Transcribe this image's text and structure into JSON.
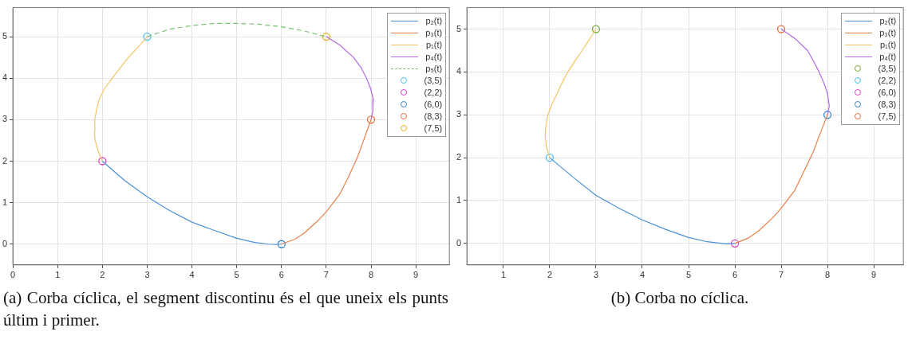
{
  "chart_data": [
    {
      "type": "line",
      "xlim": [
        0,
        9.75
      ],
      "ylim": [
        -0.5,
        5.7
      ],
      "xticks": [
        0,
        1,
        2,
        3,
        4,
        5,
        6,
        7,
        8,
        9
      ],
      "yticks": [
        0,
        1,
        2,
        3,
        4,
        5
      ],
      "grid": true,
      "legend": "top right",
      "annotations": [
        "(a) Corba cíclica, el segment discontinu és el que uneix els punts últim i primer."
      ],
      "series": [
        {
          "name": "p₂(t)",
          "color": "#4a90d9",
          "x": [
            2,
            2.5,
            3,
            3.5,
            4,
            4.5,
            5,
            5.4,
            5.7,
            5.9,
            6
          ],
          "values": [
            2,
            1.53,
            1.14,
            0.81,
            0.53,
            0.33,
            0.14,
            0.04,
            0,
            -0.01,
            0
          ]
        },
        {
          "name": "p₃(t)",
          "color": "#e8804a",
          "x": [
            6,
            6.3,
            6.5,
            6.8,
            7,
            7.3,
            7.5,
            7.7,
            7.8,
            7.9,
            8
          ],
          "values": [
            0,
            0.12,
            0.26,
            0.55,
            0.78,
            1.2,
            1.63,
            2.1,
            2.4,
            2.7,
            3
          ]
        },
        {
          "name": "p₁(t)",
          "color": "#f2c464",
          "x": [
            2,
            1.9,
            1.84,
            1.82,
            1.83,
            1.87,
            1.93,
            2.05,
            2.22,
            2.4,
            2.58,
            2.8,
            3
          ],
          "values": [
            2,
            2.25,
            2.5,
            2.7,
            3,
            3.25,
            3.5,
            3.75,
            4,
            4.25,
            4.5,
            4.75,
            5
          ]
        },
        {
          "name": "p₄(t)",
          "color": "#b36ae2",
          "x": [
            7,
            7.3,
            7.61,
            7.78,
            7.9,
            7.99,
            8.05,
            8.04,
            8
          ],
          "values": [
            5,
            4.8,
            4.5,
            4.25,
            4,
            3.75,
            3.5,
            3.2,
            3
          ]
        },
        {
          "name": "p₅(t)",
          "color": "#77c46e",
          "line_style": "dashed",
          "x": [
            3,
            3.5,
            4,
            4.5,
            5,
            5.5,
            6,
            6.5,
            7
          ],
          "values": [
            5,
            5.18,
            5.27,
            5.32,
            5.32,
            5.3,
            5.24,
            5.14,
            5
          ]
        },
        {
          "name": "(3,5)",
          "type": "scatter",
          "marker": "circle",
          "color": "#4dbeee",
          "x": [
            3
          ],
          "values": [
            5
          ]
        },
        {
          "name": "(2,2)",
          "type": "scatter",
          "marker": "circle",
          "color": "#e040c0",
          "x": [
            2
          ],
          "values": [
            2
          ]
        },
        {
          "name": "(6,0)",
          "type": "scatter",
          "marker": "circle",
          "color": "#3a86c8",
          "x": [
            6
          ],
          "values": [
            0
          ]
        },
        {
          "name": "(8,3)",
          "type": "scatter",
          "marker": "circle",
          "color": "#e07040",
          "x": [
            8
          ],
          "values": [
            3
          ]
        },
        {
          "name": "(7,5)",
          "type": "scatter",
          "marker": "circle",
          "color": "#edb120",
          "x": [
            7
          ],
          "values": [
            5
          ]
        }
      ]
    },
    {
      "type": "line",
      "xlim": [
        0.21,
        9.64
      ],
      "ylim": [
        -0.5,
        5.5
      ],
      "xticks": [
        1,
        2,
        3,
        4,
        5,
        6,
        7,
        8,
        9
      ],
      "yticks": [
        0,
        1,
        2,
        3,
        4,
        5
      ],
      "grid": true,
      "legend": "top right",
      "annotations": [
        "(b) Corba no cíclica."
      ],
      "series": [
        {
          "name": "p₂(t)",
          "color": "#4a90d9",
          "x": [
            2,
            2.5,
            3,
            3.5,
            4,
            4.5,
            5,
            5.4,
            5.8,
            6
          ],
          "values": [
            2,
            1.55,
            1.12,
            0.82,
            0.55,
            0.33,
            0.14,
            0.04,
            -0.01,
            0
          ]
        },
        {
          "name": "p₃(t)",
          "color": "#e8804a",
          "x": [
            6,
            6.3,
            6.5,
            6.8,
            7,
            7.3,
            7.5,
            7.7,
            7.8,
            7.9,
            8
          ],
          "values": [
            0,
            0.13,
            0.28,
            0.58,
            0.82,
            1.25,
            1.7,
            2.15,
            2.45,
            2.72,
            3
          ]
        },
        {
          "name": "p₁(t)",
          "color": "#f2c464",
          "x": [
            2,
            1.93,
            1.9,
            1.92,
            1.96,
            2.05,
            2.16,
            2.27,
            2.39,
            2.54,
            2.7,
            2.85,
            3
          ],
          "values": [
            2,
            2.25,
            2.5,
            2.75,
            3,
            3.25,
            3.5,
            3.75,
            4,
            4.25,
            4.5,
            4.75,
            5
          ]
        },
        {
          "name": "p₄(t)",
          "color": "#b36ae2",
          "x": [
            7,
            7.3,
            7.57,
            7.7,
            7.82,
            7.92,
            8,
            8.04,
            8
          ],
          "values": [
            5,
            4.78,
            4.5,
            4.25,
            4,
            3.75,
            3.5,
            3.2,
            3
          ]
        },
        {
          "name": "(3,5)",
          "type": "scatter",
          "marker": "circle",
          "color": "#77ac30",
          "x": [
            3
          ],
          "values": [
            5
          ]
        },
        {
          "name": "(2,2)",
          "type": "scatter",
          "marker": "circle",
          "color": "#4dbeee",
          "x": [
            2
          ],
          "values": [
            2
          ]
        },
        {
          "name": "(6,0)",
          "type": "scatter",
          "marker": "circle",
          "color": "#e040c0",
          "x": [
            6
          ],
          "values": [
            0
          ]
        },
        {
          "name": "(8,3)",
          "type": "scatter",
          "marker": "circle",
          "color": "#3a86c8",
          "x": [
            8
          ],
          "values": [
            3
          ]
        },
        {
          "name": "(7,5)",
          "type": "scatter",
          "marker": "circle",
          "color": "#e07040",
          "x": [
            7
          ],
          "values": [
            5
          ]
        }
      ]
    }
  ]
}
